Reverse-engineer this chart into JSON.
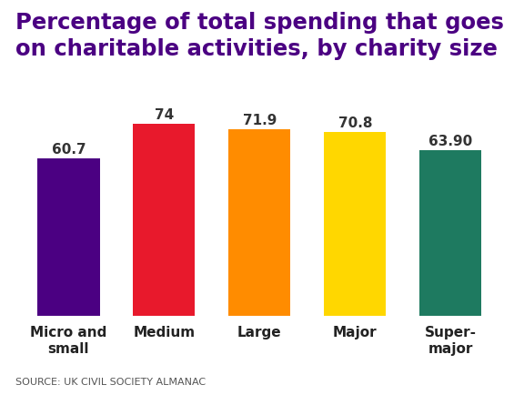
{
  "title": "Percentage of total spending that goes\non charitable activities, by charity size",
  "categories": [
    "Micro and\nsmall",
    "Medium",
    "Large",
    "Major",
    "Super-\nmajor"
  ],
  "values": [
    60.7,
    74,
    71.9,
    70.8,
    63.9
  ],
  "value_labels": [
    "60.7",
    "74",
    "71.9",
    "70.8",
    "63.90"
  ],
  "bar_colors": [
    "#4B0082",
    "#E8192C",
    "#FF8C00",
    "#FFD700",
    "#1E7A60"
  ],
  "title_color": "#4B0082",
  "source_text": "SOURCE: UK CIVIL SOCIETY ALMANAC",
  "ylim": [
    0,
    82
  ],
  "background_color": "#FFFFFF",
  "title_fontsize": 17.5,
  "label_fontsize": 11,
  "value_fontsize": 11,
  "source_fontsize": 8
}
